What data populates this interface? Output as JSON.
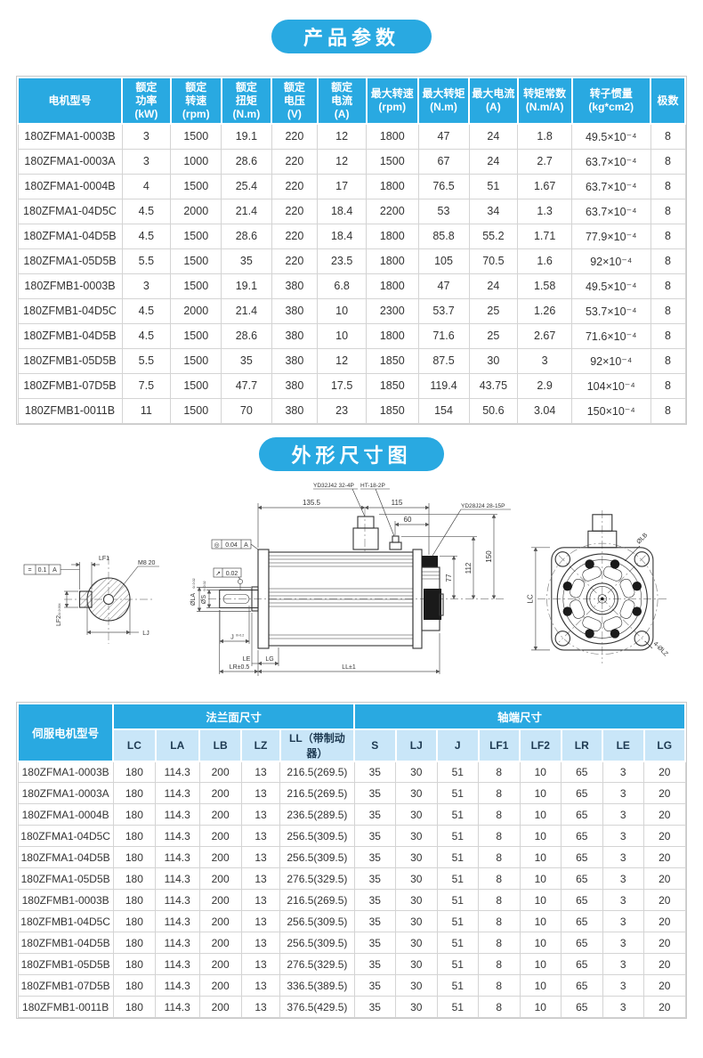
{
  "colors": {
    "accent_blue": "#29a9e1",
    "subheader_blue": "#c9e6f8",
    "border_gray": "#d4d4d4"
  },
  "section1": {
    "title": "产品参数"
  },
  "table1": {
    "headers": [
      "电机型号",
      "额定\n功率\n(kW)",
      "额定\n转速\n(rpm)",
      "额定\n扭矩\n(N.m)",
      "额定\n电压\n(V)",
      "额定\n电流\n(A)",
      "最大转速\n(rpm)",
      "最大转矩\n(N.m)",
      "最大电流\n(A)",
      "转矩常数\n(N.m/A)",
      "转子惯量\n(kg*cm2)",
      "极数"
    ],
    "rows": [
      [
        "180ZFMA1-0003B",
        "3",
        "1500",
        "19.1",
        "220",
        "12",
        "1800",
        "47",
        "24",
        "1.8",
        "49.5×10⁻⁴",
        "8"
      ],
      [
        "180ZFMA1-0003A",
        "3",
        "1000",
        "28.6",
        "220",
        "12",
        "1500",
        "67",
        "24",
        "2.7",
        "63.7×10⁻⁴",
        "8"
      ],
      [
        "180ZFMA1-0004B",
        "4",
        "1500",
        "25.4",
        "220",
        "17",
        "1800",
        "76.5",
        "51",
        "1.67",
        "63.7×10⁻⁴",
        "8"
      ],
      [
        "180ZFMA1-04D5C",
        "4.5",
        "2000",
        "21.4",
        "220",
        "18.4",
        "2200",
        "53",
        "34",
        "1.3",
        "63.7×10⁻⁴",
        "8"
      ],
      [
        "180ZFMA1-04D5B",
        "4.5",
        "1500",
        "28.6",
        "220",
        "18.4",
        "1800",
        "85.8",
        "55.2",
        "1.71",
        "77.9×10⁻⁴",
        "8"
      ],
      [
        "180ZFMA1-05D5B",
        "5.5",
        "1500",
        "35",
        "220",
        "23.5",
        "1800",
        "105",
        "70.5",
        "1.6",
        "92×10⁻⁴",
        "8"
      ],
      [
        "180ZFMB1-0003B",
        "3",
        "1500",
        "19.1",
        "380",
        "6.8",
        "1800",
        "47",
        "24",
        "1.58",
        "49.5×10⁻⁴",
        "8"
      ],
      [
        "180ZFMB1-04D5C",
        "4.5",
        "2000",
        "21.4",
        "380",
        "10",
        "2300",
        "53.7",
        "25",
        "1.26",
        "53.7×10⁻⁴",
        "8"
      ],
      [
        "180ZFMB1-04D5B",
        "4.5",
        "1500",
        "28.6",
        "380",
        "10",
        "1800",
        "71.6",
        "25",
        "2.67",
        "71.6×10⁻⁴",
        "8"
      ],
      [
        "180ZFMB1-05D5B",
        "5.5",
        "1500",
        "35",
        "380",
        "12",
        "1850",
        "87.5",
        "30",
        "3",
        "92×10⁻⁴",
        "8"
      ],
      [
        "180ZFMB1-07D5B",
        "7.5",
        "1500",
        "47.7",
        "380",
        "17.5",
        "1850",
        "119.4",
        "43.75",
        "2.9",
        "104×10⁻⁴",
        "8"
      ],
      [
        "180ZFMB1-0011B",
        "11",
        "1500",
        "70",
        "380",
        "23",
        "1850",
        "154",
        "50.6",
        "3.04",
        "150×10⁻⁴",
        "8"
      ]
    ]
  },
  "section2": {
    "title": "外形尺寸图"
  },
  "drawing": {
    "callout_big_connector": "YD32J42 32-4P",
    "callout_big_connector2": "HT-18-2P",
    "callout_small_connector": "YD28J24 28-15P",
    "dim_135": "135.5",
    "dim_115": "115",
    "dim_60": "60",
    "dim_77": "77",
    "dim_112": "112",
    "dim_150": "150",
    "label_lf1": "LF1",
    "label_m8": "M8 20",
    "label_lf2": "LF2",
    "label_lj": "LJ",
    "label_phi_la": "ØLA",
    "label_phi_s": "ØS",
    "label_j": "J",
    "label_le": "LE",
    "label_lg": "LG",
    "label_lr": "LR±0.5",
    "label_ll": "LL±1",
    "label_lc": "LC",
    "label_phi_lb": "ØLB",
    "label_lz": "4-ØLZ",
    "tol_frame1": {
      "symbol": "=",
      "value": "0.1",
      "datum": "A"
    },
    "tol_frame2": {
      "symbol": "◎",
      "value": "0.04",
      "datum": "A"
    },
    "tol_frame3": {
      "symbol": "↗",
      "value": "0.02"
    },
    "tol_s": "0/-0.02",
    "tol_la": "0/-0.02",
    "tol_j": "0/-0.2",
    "tol_lf2": "0/-0.004"
  },
  "table2": {
    "model_header": "伺服电机型号",
    "group1": "法兰面尺寸",
    "group2": "轴端尺寸",
    "sub_headers": [
      "LC",
      "LA",
      "LB",
      "LZ",
      "LL（带制动器）",
      "S",
      "LJ",
      "J",
      "LF1",
      "LF2",
      "LR",
      "LE",
      "LG"
    ],
    "rows": [
      [
        "180ZFMA1-0003B",
        "180",
        "114.3",
        "200",
        "13",
        "216.5(269.5)",
        "35",
        "30",
        "51",
        "8",
        "10",
        "65",
        "3",
        "20"
      ],
      [
        "180ZFMA1-0003A",
        "180",
        "114.3",
        "200",
        "13",
        "216.5(269.5)",
        "35",
        "30",
        "51",
        "8",
        "10",
        "65",
        "3",
        "20"
      ],
      [
        "180ZFMA1-0004B",
        "180",
        "114.3",
        "200",
        "13",
        "236.5(289.5)",
        "35",
        "30",
        "51",
        "8",
        "10",
        "65",
        "3",
        "20"
      ],
      [
        "180ZFMA1-04D5C",
        "180",
        "114.3",
        "200",
        "13",
        "256.5(309.5)",
        "35",
        "30",
        "51",
        "8",
        "10",
        "65",
        "3",
        "20"
      ],
      [
        "180ZFMA1-04D5B",
        "180",
        "114.3",
        "200",
        "13",
        "256.5(309.5)",
        "35",
        "30",
        "51",
        "8",
        "10",
        "65",
        "3",
        "20"
      ],
      [
        "180ZFMA1-05D5B",
        "180",
        "114.3",
        "200",
        "13",
        "276.5(329.5)",
        "35",
        "30",
        "51",
        "8",
        "10",
        "65",
        "3",
        "20"
      ],
      [
        "180ZFMB1-0003B",
        "180",
        "114.3",
        "200",
        "13",
        "216.5(269.5)",
        "35",
        "30",
        "51",
        "8",
        "10",
        "65",
        "3",
        "20"
      ],
      [
        "180ZFMB1-04D5C",
        "180",
        "114.3",
        "200",
        "13",
        "256.5(309.5)",
        "35",
        "30",
        "51",
        "8",
        "10",
        "65",
        "3",
        "20"
      ],
      [
        "180ZFMB1-04D5B",
        "180",
        "114.3",
        "200",
        "13",
        "256.5(309.5)",
        "35",
        "30",
        "51",
        "8",
        "10",
        "65",
        "3",
        "20"
      ],
      [
        "180ZFMB1-05D5B",
        "180",
        "114.3",
        "200",
        "13",
        "276.5(329.5)",
        "35",
        "30",
        "51",
        "8",
        "10",
        "65",
        "3",
        "20"
      ],
      [
        "180ZFMB1-07D5B",
        "180",
        "114.3",
        "200",
        "13",
        "336.5(389.5)",
        "35",
        "30",
        "51",
        "8",
        "10",
        "65",
        "3",
        "20"
      ],
      [
        "180ZFMB1-0011B",
        "180",
        "114.3",
        "200",
        "13",
        "376.5(429.5)",
        "35",
        "30",
        "51",
        "8",
        "10",
        "65",
        "3",
        "20"
      ]
    ]
  }
}
